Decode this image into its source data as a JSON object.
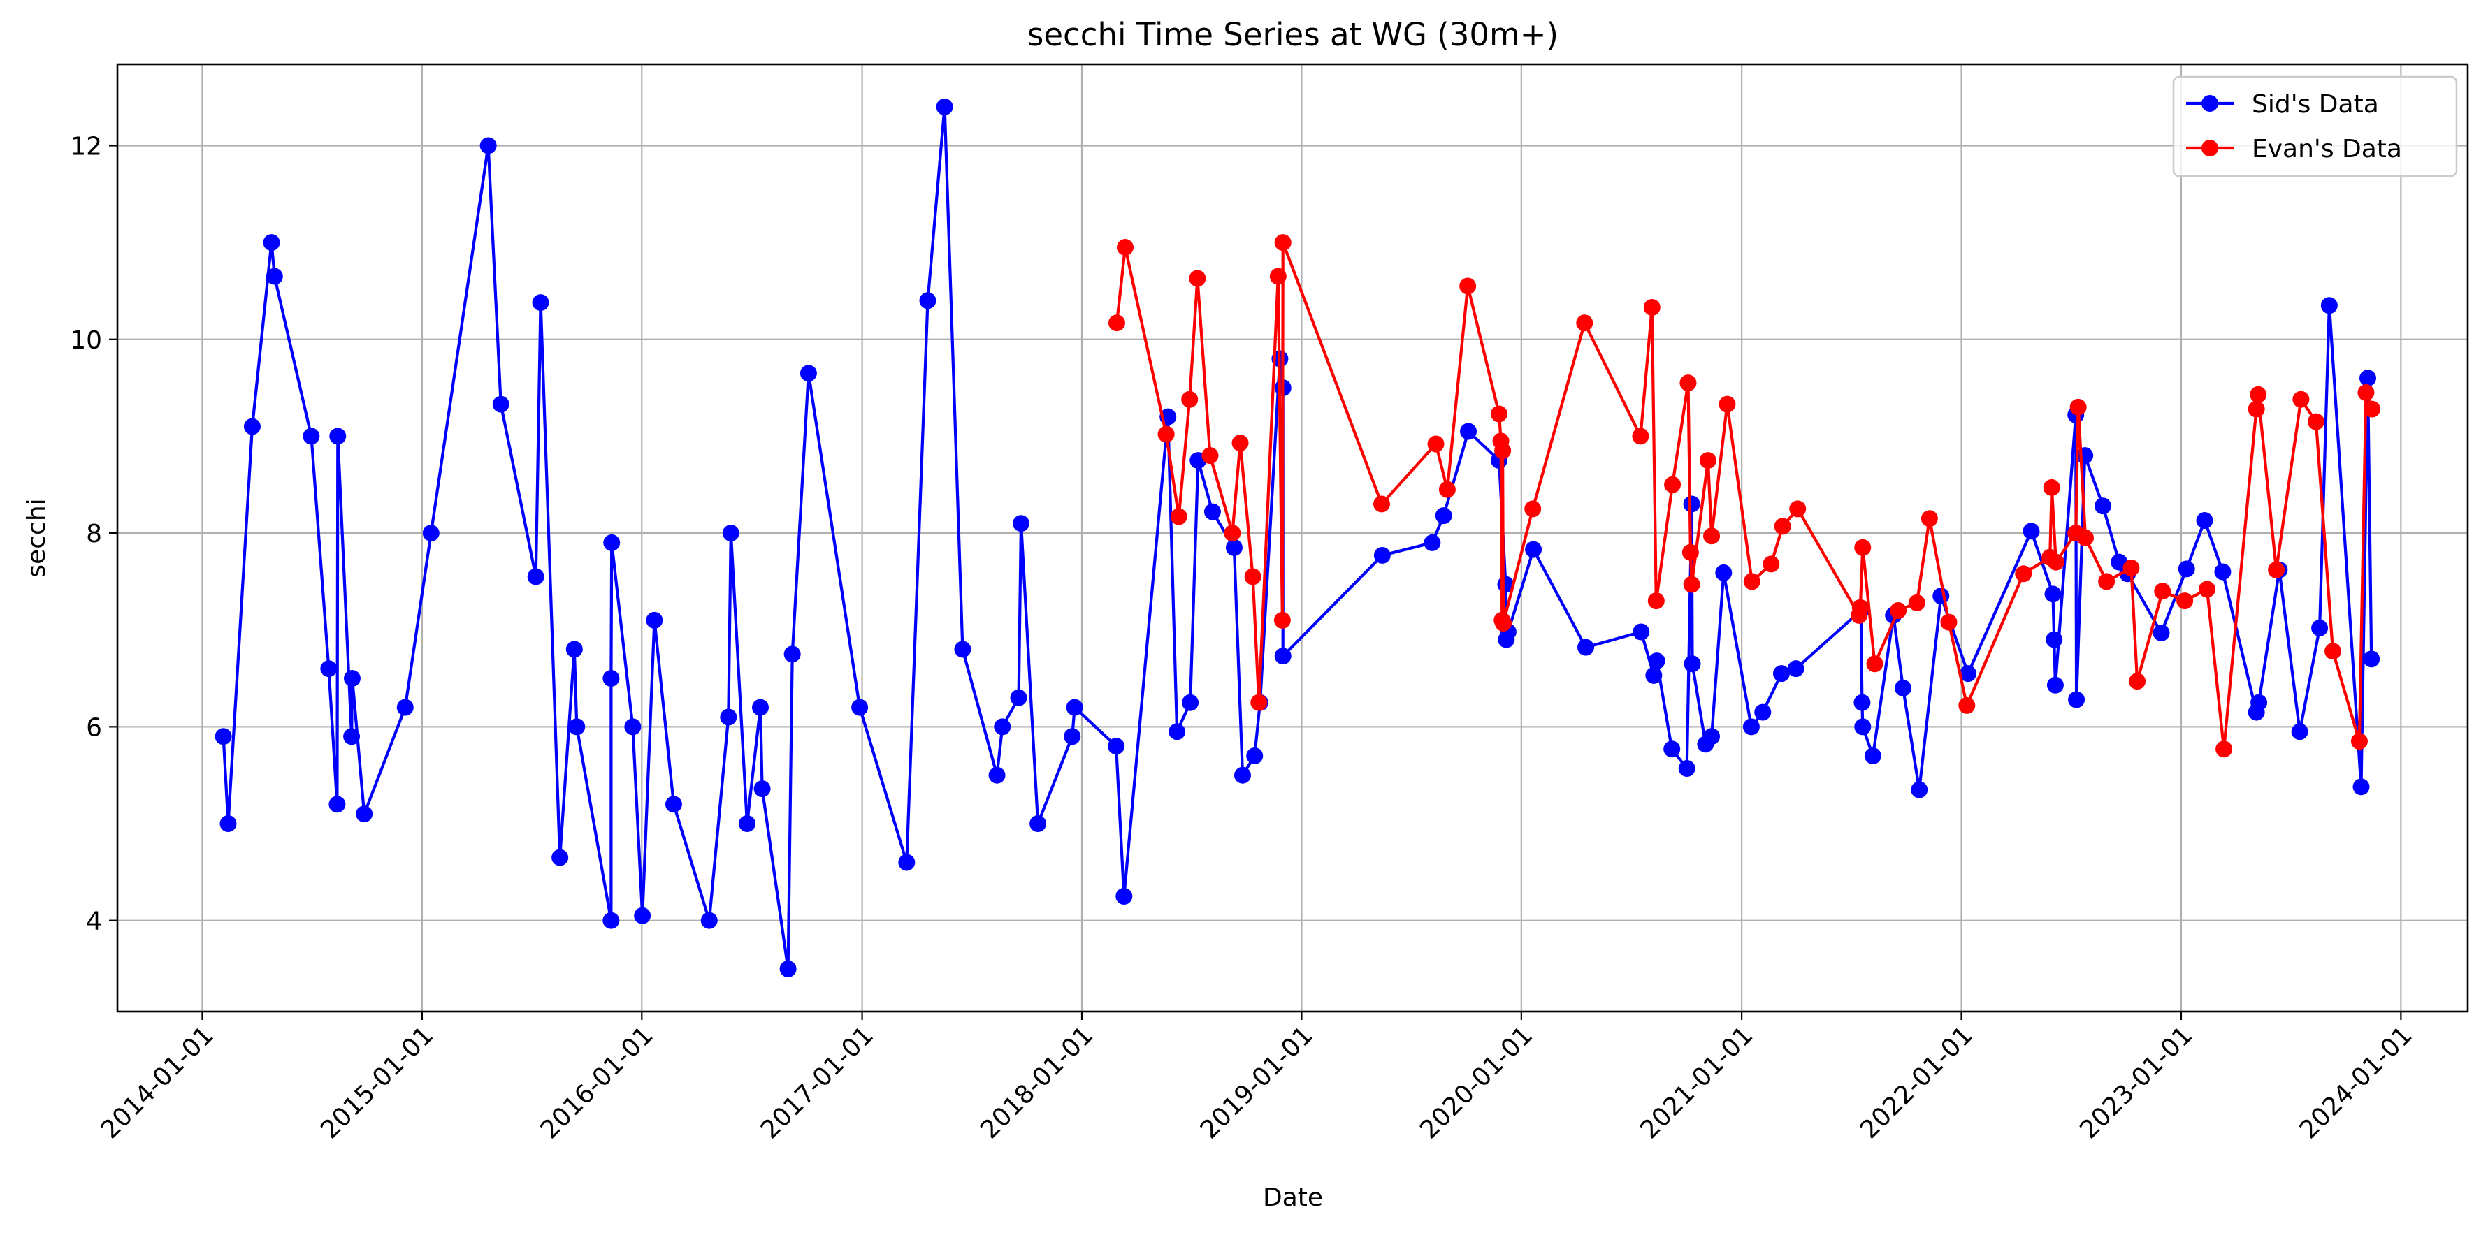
{
  "chart_data": {
    "type": "line",
    "title": "secchi Time Series at WG (30m+)",
    "xlabel": "Date",
    "ylabel": "secchi",
    "xlim": [
      "2013-08-13",
      "2024-04-21"
    ],
    "ylim": [
      3.06,
      12.84
    ],
    "x_ticks": [
      "2014-01-01",
      "2015-01-01",
      "2016-01-01",
      "2017-01-01",
      "2018-01-01",
      "2019-01-01",
      "2020-01-01",
      "2021-01-01",
      "2022-01-01",
      "2023-01-01",
      "2024-01-01"
    ],
    "y_ticks": [
      4,
      6,
      8,
      10,
      12
    ],
    "grid": true,
    "legend": "top-right",
    "series": [
      {
        "name": "Sid's Data",
        "color": "#0000ff",
        "points": [
          [
            "2014-02-05",
            5.9
          ],
          [
            "2014-02-13",
            5.0
          ],
          [
            "2014-03-25",
            9.1
          ],
          [
            "2014-04-26",
            11.0
          ],
          [
            "2014-05-01",
            10.65
          ],
          [
            "2014-07-01",
            9.0
          ],
          [
            "2014-07-30",
            6.6
          ],
          [
            "2014-08-13",
            5.2
          ],
          [
            "2014-08-14",
            9.0
          ],
          [
            "2014-09-06",
            5.9
          ],
          [
            "2014-09-07",
            6.5
          ],
          [
            "2014-09-27",
            5.1
          ],
          [
            "2014-12-04",
            6.2
          ],
          [
            "2015-01-16",
            8.0
          ],
          [
            "2015-04-21",
            12.0
          ],
          [
            "2015-05-12",
            9.33
          ],
          [
            "2015-07-09",
            7.55
          ],
          [
            "2015-07-17",
            10.38
          ],
          [
            "2015-08-18",
            4.65
          ],
          [
            "2015-09-11",
            6.8
          ],
          [
            "2015-09-15",
            6.0
          ],
          [
            "2015-11-11",
            4.0
          ],
          [
            "2015-11-11",
            6.5
          ],
          [
            "2015-11-12",
            7.9
          ],
          [
            "2015-12-17",
            6.0
          ],
          [
            "2016-01-02",
            4.05
          ],
          [
            "2016-01-22",
            7.1
          ],
          [
            "2016-02-23",
            5.2
          ],
          [
            "2016-04-22",
            4.0
          ],
          [
            "2016-05-24",
            6.1
          ],
          [
            "2016-05-28",
            8.0
          ],
          [
            "2016-06-24",
            5.0
          ],
          [
            "2016-07-16",
            6.2
          ],
          [
            "2016-07-19",
            5.36
          ],
          [
            "2016-08-31",
            3.5
          ],
          [
            "2016-09-07",
            6.75
          ],
          [
            "2016-10-04",
            9.65
          ],
          [
            "2016-12-28",
            6.2
          ],
          [
            "2017-03-16",
            4.6
          ],
          [
            "2017-04-20",
            10.4
          ],
          [
            "2017-05-18",
            12.4
          ],
          [
            "2017-06-17",
            6.8
          ],
          [
            "2017-08-13",
            5.5
          ],
          [
            "2017-08-22",
            6.0
          ],
          [
            "2017-09-18",
            6.3
          ],
          [
            "2017-09-22",
            8.1
          ],
          [
            "2017-10-20",
            5.0
          ],
          [
            "2017-12-16",
            5.9
          ],
          [
            "2017-12-20",
            6.2
          ],
          [
            "2018-02-27",
            5.8
          ],
          [
            "2018-03-12",
            4.25
          ],
          [
            "2018-05-24",
            9.2
          ],
          [
            "2018-06-08",
            5.95
          ],
          [
            "2018-06-30",
            6.25
          ],
          [
            "2018-07-13",
            8.75
          ],
          [
            "2018-08-06",
            8.22
          ],
          [
            "2018-09-11",
            7.85
          ],
          [
            "2018-09-25",
            5.5
          ],
          [
            "2018-10-15",
            5.7
          ],
          [
            "2018-10-24",
            6.25
          ],
          [
            "2018-11-26",
            9.8
          ],
          [
            "2018-12-01",
            9.5
          ],
          [
            "2018-12-01",
            6.73
          ],
          [
            "2019-05-15",
            7.77
          ],
          [
            "2019-08-06",
            7.9
          ],
          [
            "2019-08-25",
            8.18
          ],
          [
            "2019-10-05",
            9.05
          ],
          [
            "2019-11-25",
            8.75
          ],
          [
            "2019-12-06",
            7.47
          ],
          [
            "2019-12-07",
            6.9
          ],
          [
            "2019-12-10",
            6.98
          ],
          [
            "2020-01-21",
            7.83
          ],
          [
            "2020-04-17",
            6.82
          ],
          [
            "2020-07-18",
            6.98
          ],
          [
            "2020-08-08",
            6.53
          ],
          [
            "2020-08-13",
            6.68
          ],
          [
            "2020-09-07",
            5.77
          ],
          [
            "2020-10-02",
            5.57
          ],
          [
            "2020-10-10",
            8.3
          ],
          [
            "2020-10-11",
            6.65
          ],
          [
            "2020-11-02",
            5.82
          ],
          [
            "2020-11-12",
            5.9
          ],
          [
            "2020-12-02",
            7.59
          ],
          [
            "2021-01-17",
            6.0
          ],
          [
            "2021-02-05",
            6.15
          ],
          [
            "2021-03-08",
            6.55
          ],
          [
            "2021-04-01",
            6.6
          ],
          [
            "2021-07-18",
            7.2
          ],
          [
            "2021-07-20",
            6.25
          ],
          [
            "2021-07-21",
            6.0
          ],
          [
            "2021-08-07",
            5.7
          ],
          [
            "2021-09-10",
            7.15
          ],
          [
            "2021-09-26",
            6.4
          ],
          [
            "2021-10-23",
            5.35
          ],
          [
            "2021-11-28",
            7.35
          ],
          [
            "2022-01-12",
            6.55
          ],
          [
            "2022-04-27",
            8.02
          ],
          [
            "2022-06-02",
            7.37
          ],
          [
            "2022-06-04",
            6.9
          ],
          [
            "2022-06-06",
            6.43
          ],
          [
            "2022-07-10",
            9.22
          ],
          [
            "2022-07-11",
            6.28
          ],
          [
            "2022-07-25",
            8.8
          ],
          [
            "2022-08-24",
            8.28
          ],
          [
            "2022-09-20",
            7.7
          ],
          [
            "2022-10-04",
            7.58
          ],
          [
            "2022-11-29",
            6.97
          ],
          [
            "2023-01-10",
            7.63
          ],
          [
            "2023-02-09",
            8.13
          ],
          [
            "2023-03-11",
            7.6
          ],
          [
            "2023-05-06",
            6.15
          ],
          [
            "2023-05-10",
            6.25
          ],
          [
            "2023-06-13",
            7.62
          ],
          [
            "2023-07-17",
            5.95
          ],
          [
            "2023-08-19",
            7.02
          ],
          [
            "2023-09-04",
            10.35
          ],
          [
            "2023-10-27",
            5.38
          ],
          [
            "2023-11-07",
            9.6
          ],
          [
            "2023-11-13",
            6.7
          ]
        ]
      },
      {
        "name": "Evan's Data",
        "color": "#ff0000",
        "points": [
          [
            "2018-02-28",
            10.17
          ],
          [
            "2018-03-14",
            10.95
          ],
          [
            "2018-05-21",
            9.02
          ],
          [
            "2018-06-11",
            8.17
          ],
          [
            "2018-06-29",
            9.38
          ],
          [
            "2018-07-12",
            10.63
          ],
          [
            "2018-08-02",
            8.8
          ],
          [
            "2018-09-08",
            8.0
          ],
          [
            "2018-09-21",
            8.93
          ],
          [
            "2018-10-12",
            7.55
          ],
          [
            "2018-10-22",
            6.25
          ],
          [
            "2018-11-23",
            10.65
          ],
          [
            "2018-11-30",
            7.1
          ],
          [
            "2018-12-01",
            11.0
          ],
          [
            "2019-05-14",
            8.3
          ],
          [
            "2019-08-12",
            8.92
          ],
          [
            "2019-08-31",
            8.45
          ],
          [
            "2019-10-04",
            10.55
          ],
          [
            "2019-11-25",
            9.23
          ],
          [
            "2019-11-28",
            8.95
          ],
          [
            "2019-11-30",
            7.1
          ],
          [
            "2019-12-01",
            8.85
          ],
          [
            "2019-12-02",
            7.07
          ],
          [
            "2020-01-20",
            8.25
          ],
          [
            "2020-04-15",
            10.17
          ],
          [
            "2020-07-17",
            9.0
          ],
          [
            "2020-08-05",
            10.33
          ],
          [
            "2020-08-12",
            7.3
          ],
          [
            "2020-09-08",
            8.5
          ],
          [
            "2020-10-04",
            9.55
          ],
          [
            "2020-10-08",
            7.8
          ],
          [
            "2020-10-10",
            7.47
          ],
          [
            "2020-11-06",
            8.75
          ],
          [
            "2020-11-12",
            7.97
          ],
          [
            "2020-12-08",
            9.33
          ],
          [
            "2021-01-18",
            7.5
          ],
          [
            "2021-02-19",
            7.68
          ],
          [
            "2021-03-10",
            8.07
          ],
          [
            "2021-04-04",
            8.25
          ],
          [
            "2021-07-15",
            7.15
          ],
          [
            "2021-07-17",
            7.23
          ],
          [
            "2021-07-21",
            7.85
          ],
          [
            "2021-08-10",
            6.65
          ],
          [
            "2021-09-18",
            7.2
          ],
          [
            "2021-10-19",
            7.28
          ],
          [
            "2021-11-09",
            8.15
          ],
          [
            "2021-12-11",
            7.08
          ],
          [
            "2022-01-10",
            6.22
          ],
          [
            "2022-04-14",
            7.58
          ],
          [
            "2022-05-28",
            7.75
          ],
          [
            "2022-05-31",
            8.47
          ],
          [
            "2022-06-07",
            7.7
          ],
          [
            "2022-07-10",
            8.0
          ],
          [
            "2022-07-14",
            9.3
          ],
          [
            "2022-07-26",
            7.95
          ],
          [
            "2022-08-30",
            7.5
          ],
          [
            "2022-10-10",
            7.64
          ],
          [
            "2022-10-20",
            6.47
          ],
          [
            "2022-12-01",
            7.4
          ],
          [
            "2023-01-07",
            7.3
          ],
          [
            "2023-02-13",
            7.42
          ],
          [
            "2023-03-13",
            5.77
          ],
          [
            "2023-05-06",
            9.28
          ],
          [
            "2023-05-09",
            9.43
          ],
          [
            "2023-06-08",
            7.62
          ],
          [
            "2023-07-19",
            9.38
          ],
          [
            "2023-08-13",
            9.15
          ],
          [
            "2023-09-10",
            6.78
          ],
          [
            "2023-10-24",
            5.85
          ],
          [
            "2023-11-04",
            9.45
          ],
          [
            "2023-11-14",
            9.28
          ]
        ]
      }
    ]
  }
}
